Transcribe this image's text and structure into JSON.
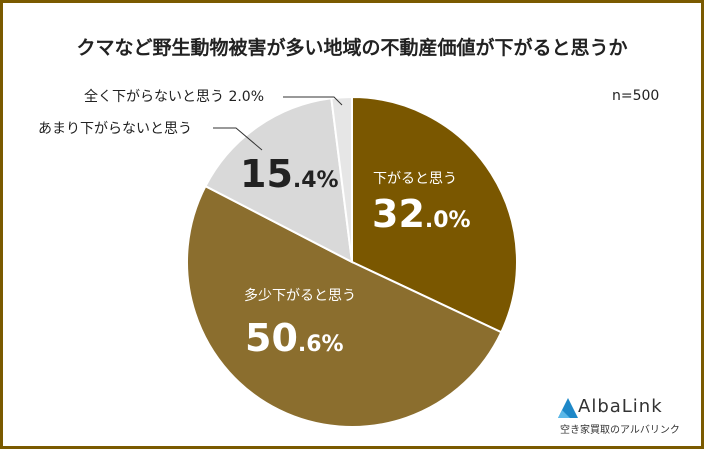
{
  "title": "クマなど野生動物被害が多い地域の不動産価値が下がると思うか",
  "sample": "n=500",
  "colors": {
    "frame": "#7a5a00",
    "s1": "#7a5700",
    "s2": "#8b6e2e",
    "s3": "#d9d9d9",
    "s4": "#e6e6e6"
  },
  "labels": {
    "s1_name": "下がると思う",
    "s1_int": "32",
    "s1_dec": ".0%",
    "s2_name": "多少下がると思う",
    "s2_int": "50",
    "s2_dec": ".6%",
    "s3_name": "あまり下がらないと思う",
    "s3_int": "15",
    "s3_dec": ".4%",
    "s4_name": "全く下がらないと思う 2.0%"
  },
  "logo": {
    "name": "AlbaLink",
    "sub": "空き家買取のアルバリンク"
  },
  "chart_data": {
    "type": "pie",
    "title": "クマなど野生動物被害が多い地域の不動産価値が下がると思うか",
    "annotation": "n=500",
    "categories": [
      "下がると思う",
      "多少下がると思う",
      "あまり下がらないと思う",
      "全く下がらないと思う"
    ],
    "values": [
      32.0,
      50.6,
      15.4,
      2.0
    ],
    "unit": "%",
    "start_angle": "12 o'clock, clockwise"
  }
}
